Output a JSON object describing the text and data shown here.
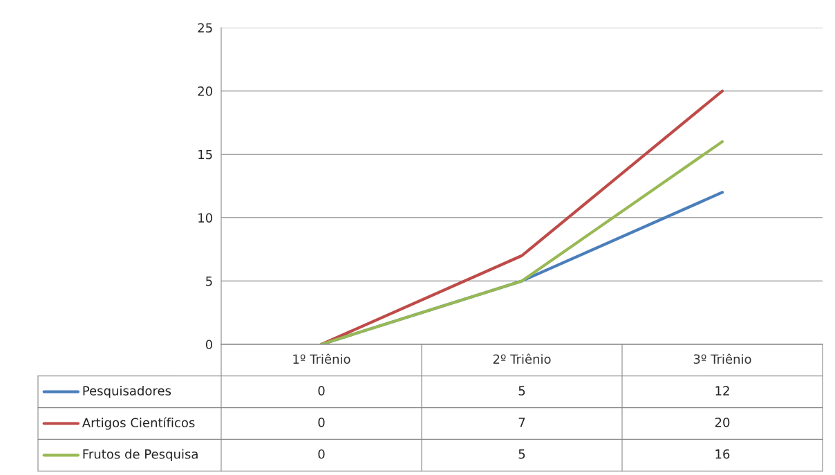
{
  "chart_data": {
    "type": "line",
    "categories": [
      "1º Triênio",
      "2º Triênio",
      "3º Triênio"
    ],
    "series": [
      {
        "name": "Pesquisadores",
        "color": "#4a7ebb",
        "values": [
          0,
          5,
          12
        ]
      },
      {
        "name": "Artigos Científicos",
        "color": "#be4b48",
        "values": [
          0,
          7,
          20
        ]
      },
      {
        "name": "Frutos de Pesquisa",
        "color": "#98b954",
        "values": [
          0,
          5,
          16
        ]
      }
    ],
    "ylim": [
      0,
      25
    ],
    "yticks": [
      0,
      5,
      10,
      15,
      20,
      25
    ],
    "grid": "y",
    "legend": "bottom",
    "data_labels": true,
    "marker": "none",
    "line_style": "solid"
  }
}
